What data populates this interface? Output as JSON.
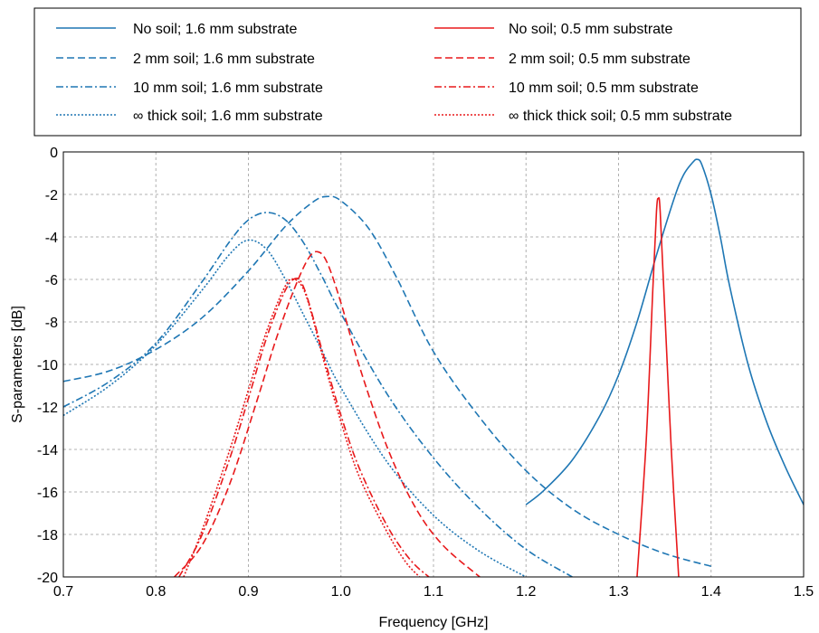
{
  "chart_data": {
    "type": "line",
    "xlabel": "Frequency [GHz]",
    "ylabel": "S-parameters [dB]",
    "xlim": [
      0.7,
      1.5
    ],
    "ylim": [
      -20,
      0
    ],
    "xticks": [
      "0.7",
      "0.8",
      "0.9",
      "1.0",
      "1.1",
      "1.2",
      "1.3",
      "1.4",
      "1.5"
    ],
    "yticks": [
      "0",
      "-2",
      "-4",
      "-6",
      "-8",
      "-10",
      "-12",
      "-14",
      "-16",
      "-18",
      "-20"
    ],
    "grid": true,
    "legend_position": "top",
    "colors": {
      "blue": "#1f77b4",
      "red": "#e8191b"
    },
    "series": [
      {
        "name": "No soil; 1.6 mm substrate",
        "color": "#1f77b4",
        "dash": "solid",
        "x": [
          1.2,
          1.22,
          1.25,
          1.28,
          1.3,
          1.32,
          1.34,
          1.36,
          1.37,
          1.38,
          1.385,
          1.39,
          1.4,
          1.41,
          1.42,
          1.44,
          1.46,
          1.48,
          1.5
        ],
        "y": [
          -16.6,
          -15.9,
          -14.5,
          -12.4,
          -10.5,
          -8.0,
          -5.0,
          -2.2,
          -1.1,
          -0.5,
          -0.35,
          -0.6,
          -2.0,
          -4.0,
          -6.3,
          -10.0,
          -12.7,
          -14.8,
          -16.6
        ]
      },
      {
        "name": "2 mm soil; 1.6 mm substrate",
        "color": "#1f77b4",
        "dash": "dashed",
        "x": [
          0.7,
          0.75,
          0.8,
          0.85,
          0.9,
          0.94,
          0.97,
          0.985,
          1.0,
          1.03,
          1.06,
          1.1,
          1.15,
          1.2,
          1.25,
          1.3,
          1.35,
          1.4
        ],
        "y": [
          -10.8,
          -10.3,
          -9.3,
          -7.8,
          -5.6,
          -3.5,
          -2.35,
          -2.1,
          -2.3,
          -3.6,
          -5.9,
          -9.4,
          -12.5,
          -15.0,
          -16.8,
          -18.0,
          -18.9,
          -19.5
        ]
      },
      {
        "name": "10 mm soil; 1.6 mm substrate",
        "color": "#1f77b4",
        "dash": "dashdot",
        "x": [
          0.7,
          0.75,
          0.8,
          0.85,
          0.88,
          0.9,
          0.92,
          0.94,
          0.96,
          0.98,
          1.0,
          1.05,
          1.1,
          1.15,
          1.2,
          1.25
        ],
        "y": [
          -12.0,
          -10.8,
          -9.0,
          -6.1,
          -4.2,
          -3.2,
          -2.85,
          -3.2,
          -4.3,
          -5.9,
          -7.6,
          -11.4,
          -14.4,
          -16.8,
          -18.7,
          -20.0
        ]
      },
      {
        "name": "∞ thick soil; 1.6 mm substrate",
        "color": "#1f77b4",
        "dash": "dotted",
        "x": [
          0.7,
          0.75,
          0.8,
          0.85,
          0.88,
          0.9,
          0.92,
          0.94,
          0.96,
          0.98,
          1.0,
          1.05,
          1.1,
          1.15,
          1.2
        ],
        "y": [
          -12.4,
          -11.0,
          -9.1,
          -6.5,
          -4.8,
          -4.15,
          -4.6,
          -6.0,
          -7.7,
          -9.4,
          -11.1,
          -14.6,
          -17.1,
          -18.8,
          -20.0
        ]
      },
      {
        "name": "No soil; 0.5 mm substrate",
        "color": "#e8191b",
        "dash": "solid",
        "x": [
          1.32,
          1.33,
          1.337,
          1.341,
          1.343,
          1.345,
          1.35,
          1.357,
          1.365
        ],
        "y": [
          -20.0,
          -13.5,
          -6.5,
          -2.8,
          -2.2,
          -2.8,
          -7.5,
          -14.0,
          -20.0
        ]
      },
      {
        "name": "2 mm soil; 0.5 mm substrate",
        "color": "#e8191b",
        "dash": "dashed",
        "x": [
          0.82,
          0.85,
          0.88,
          0.91,
          0.93,
          0.95,
          0.965,
          0.975,
          0.985,
          1.0,
          1.02,
          1.05,
          1.08,
          1.11,
          1.15
        ],
        "y": [
          -20.0,
          -18.5,
          -15.6,
          -11.6,
          -8.8,
          -6.4,
          -5.0,
          -4.7,
          -5.2,
          -7.1,
          -10.1,
          -13.9,
          -16.7,
          -18.5,
          -20.0
        ]
      },
      {
        "name": "10 mm soil; 0.5 mm substrate",
        "color": "#e8191b",
        "dash": "dashdot",
        "x": [
          0.825,
          0.85,
          0.88,
          0.9,
          0.92,
          0.94,
          0.952,
          0.96,
          0.97,
          0.98,
          1.0,
          1.02,
          1.05,
          1.075,
          1.095
        ],
        "y": [
          -20.0,
          -18.0,
          -14.4,
          -11.6,
          -8.7,
          -6.5,
          -5.95,
          -6.4,
          -7.8,
          -9.4,
          -12.4,
          -14.9,
          -17.6,
          -19.2,
          -20.0
        ]
      },
      {
        "name": "∞ thick thick soil; 0.5 mm substrate",
        "color": "#e8191b",
        "dash": "dotted",
        "x": [
          0.83,
          0.85,
          0.88,
          0.9,
          0.92,
          0.94,
          0.95,
          0.96,
          0.97,
          0.98,
          1.0,
          1.02,
          1.05,
          1.07,
          1.085
        ],
        "y": [
          -20.0,
          -17.8,
          -14.0,
          -11.2,
          -8.4,
          -6.3,
          -6.0,
          -6.5,
          -7.9,
          -9.6,
          -12.7,
          -15.3,
          -17.9,
          -19.3,
          -20.0
        ]
      }
    ]
  }
}
